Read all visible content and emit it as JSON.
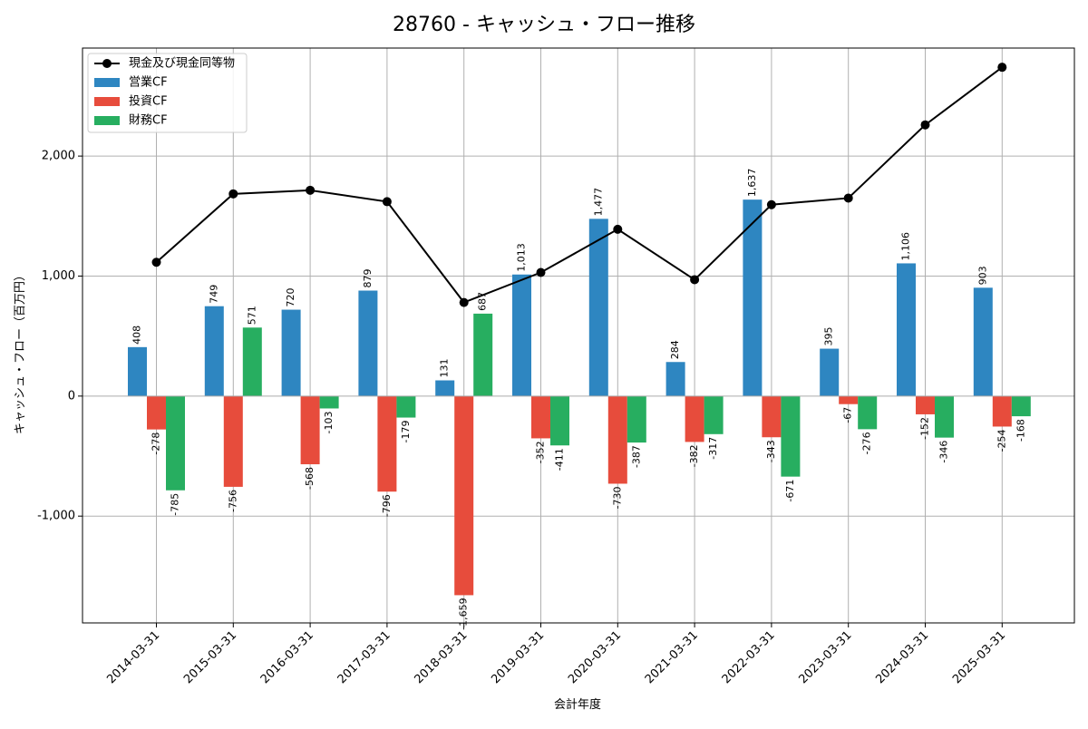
{
  "chart_data": {
    "type": "bar",
    "title": "28760 - キャッシュ・フロー推移",
    "xlabel": "会計年度",
    "ylabel": "キャッシュ・フロー（百万円）",
    "categories": [
      "2014-03-31",
      "2015-03-31",
      "2016-03-31",
      "2017-03-31",
      "2018-03-31",
      "2019-03-31",
      "2020-03-31",
      "2021-03-31",
      "2022-03-31",
      "2023-03-31",
      "2024-03-31",
      "2025-03-31"
    ],
    "ylim": [
      -1890,
      2900
    ],
    "yticks": [
      -1000,
      0,
      1000,
      2000
    ],
    "ytick_labels": [
      "-1,000",
      "0",
      "1,000",
      "2,000"
    ],
    "grid": true,
    "legend_position": "top-left",
    "series": [
      {
        "name": "営業CF",
        "kind": "bar",
        "color": "#2e86c1",
        "values": [
          408,
          749,
          720,
          879,
          131,
          1013,
          1477,
          284,
          1637,
          395,
          1106,
          903
        ],
        "labels": [
          "408",
          "749",
          "720",
          "879",
          "131",
          "1,013",
          "1,477",
          "284",
          "1,637",
          "395",
          "1,106",
          "903"
        ]
      },
      {
        "name": "投資CF",
        "kind": "bar",
        "color": "#e74c3c",
        "values": [
          -278,
          -756,
          -568,
          -796,
          -1659,
          -352,
          -730,
          -382,
          -343,
          -67,
          -152,
          -254
        ],
        "labels": [
          "-278",
          "-756",
          "-568",
          "-796",
          "-1,659",
          "-352",
          "-730",
          "-382",
          "-343",
          "-67",
          "-152",
          "-254"
        ]
      },
      {
        "name": "財務CF",
        "kind": "bar",
        "color": "#27ae60",
        "values": [
          -785,
          571,
          -103,
          -179,
          687,
          -411,
          -387,
          -317,
          -671,
          -276,
          -346,
          -168
        ],
        "labels": [
          "-785",
          "571",
          "-103",
          "-179",
          "687",
          "-411",
          "-387",
          "-317",
          "-671",
          "-276",
          "-346",
          "-168"
        ]
      },
      {
        "name": "現金及び現金同等物",
        "kind": "line",
        "color": "#000000",
        "values": [
          1115,
          1685,
          1715,
          1620,
          780,
          1030,
          1390,
          970,
          1595,
          1650,
          2260,
          2740
        ]
      }
    ]
  }
}
